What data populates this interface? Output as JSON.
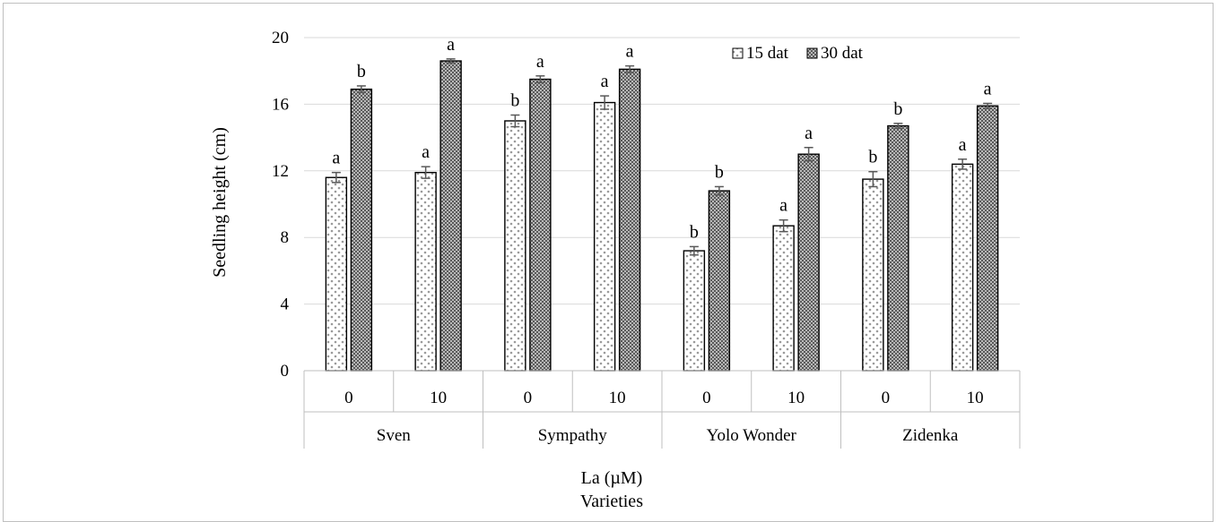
{
  "chart_data": {
    "type": "bar",
    "ylabel": "Seedling height (cm)",
    "xlabel": "La (µM)",
    "xlabel2": "Varieties",
    "ylim": [
      0,
      20
    ],
    "yticks": [
      "0",
      "4",
      "8",
      "12",
      "16",
      "20"
    ],
    "grid": true,
    "legend_position": "top-right",
    "groups": [
      {
        "name": "Sven",
        "categories": [
          "0",
          "10"
        ]
      },
      {
        "name": "Sympathy",
        "categories": [
          "0",
          "10"
        ]
      },
      {
        "name": "Yolo Wonder",
        "categories": [
          "0",
          "10"
        ]
      },
      {
        "name": "Zidenka",
        "categories": [
          "0",
          "10"
        ]
      }
    ],
    "series": [
      {
        "name": "15 dat",
        "pattern": "dots",
        "values": [
          11.6,
          11.9,
          15.0,
          16.1,
          7.2,
          8.7,
          11.5,
          12.4
        ],
        "errors": [
          0.3,
          0.35,
          0.35,
          0.4,
          0.25,
          0.35,
          0.45,
          0.3
        ],
        "letters": [
          "a",
          "a",
          "b",
          "a",
          "b",
          "a",
          "b",
          "a"
        ]
      },
      {
        "name": "30 dat",
        "pattern": "checker",
        "values": [
          16.9,
          18.6,
          17.5,
          18.1,
          10.8,
          13.0,
          14.7,
          15.9
        ],
        "errors": [
          0.2,
          0.12,
          0.2,
          0.2,
          0.25,
          0.4,
          0.15,
          0.15
        ],
        "letters": [
          "b",
          "a",
          "a",
          "a",
          "b",
          "a",
          "b",
          "a"
        ]
      }
    ]
  },
  "colors": {
    "bar_outline": "#000000",
    "dot_fill": "#a6a6a6",
    "checker_fill": "#7f7f7f",
    "gridline": "#d9d9d9",
    "axis_line": "#bfbfbf",
    "error_bar": "#595959"
  }
}
